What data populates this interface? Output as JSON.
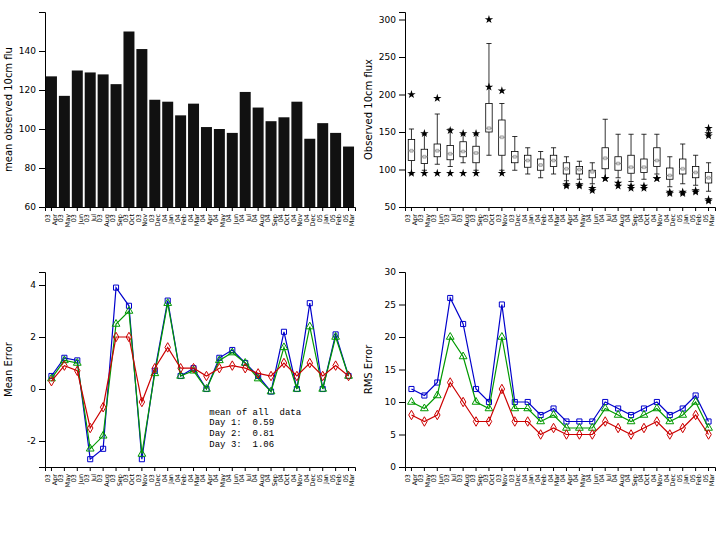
{
  "chart_data": [
    {
      "type": "bar",
      "categories": [
        "03\nApr",
        "03\nMay",
        "03\nJun",
        "03\nJul",
        "03\nAug",
        "03\nSep",
        "03\nOct",
        "03\nNov",
        "03\nDec",
        "04\nJan",
        "04\nFeb",
        "04\nMar",
        "04\nApr",
        "04\nMay",
        "04\nJun",
        "04\nJul",
        "04\nAug",
        "04\nSep",
        "04\nOct",
        "04\nNov",
        "04\nDec",
        "05\nJan",
        "05\nFeb",
        "05\nMar"
      ],
      "values": [
        127,
        117,
        130,
        129,
        128,
        123,
        150,
        141,
        115,
        114,
        107,
        113,
        101,
        100,
        98,
        119,
        111,
        104,
        106,
        114,
        95,
        103,
        98,
        91
      ],
      "color": "#111111",
      "ylabel": "mean observed 10cm flu",
      "ylim": [
        60,
        160
      ],
      "yticks": [
        60,
        80,
        100,
        120,
        140
      ]
    },
    {
      "type": "box",
      "categories": [
        "03\nApr",
        "03\nMay",
        "03\nJun",
        "03\nJul",
        "03\nAug",
        "03\nSep",
        "03\nOct",
        "03\nNov",
        "03\nDec",
        "04\nJan",
        "04\nFeb",
        "04\nMar",
        "04\nApr",
        "04\nMay",
        "04\nJun",
        "04\nJul",
        "04\nAug",
        "04\nSep",
        "04\nOct",
        "04\nNov",
        "04\nDec",
        "05\nJan",
        "05\nFeb",
        "05\nMar"
      ],
      "medians": [
        125,
        117,
        125,
        121,
        124,
        122,
        155,
        143,
        117,
        112,
        106,
        112,
        101,
        100,
        97,
        115,
        108,
        103,
        103,
        112,
        92,
        101,
        96,
        89
      ],
      "q1": [
        112,
        108,
        117,
        113,
        117,
        109,
        150,
        119,
        109,
        103,
        99,
        104,
        94,
        94,
        89,
        101,
        99,
        95,
        96,
        104,
        87,
        94,
        89,
        82
      ],
      "q3": [
        140,
        127,
        134,
        132,
        137,
        131,
        188,
        166,
        124,
        119,
        114,
        119,
        109,
        104,
        99,
        129,
        117,
        119,
        114,
        129,
        102,
        114,
        104,
        96
      ],
      "whislo": [
        94,
        99,
        107,
        104,
        109,
        99,
        119,
        99,
        99,
        94,
        89,
        94,
        85,
        87,
        81,
        89,
        89,
        84,
        87,
        94,
        77,
        81,
        79,
        71
      ],
      "whishi": [
        154,
        147,
        174,
        154,
        147,
        147,
        268,
        188,
        144,
        129,
        124,
        129,
        117,
        111,
        109,
        167,
        147,
        147,
        147,
        147,
        117,
        134,
        119,
        109
      ],
      "fliers_hi": [
        [
          200
        ],
        [
          148
        ],
        [
          195
        ],
        [
          152
        ],
        [
          148
        ],
        [
          148
        ],
        [
          300,
          210
        ],
        [
          205
        ],
        [],
        [],
        [],
        [],
        [],
        [],
        [],
        [],
        [],
        [],
        [],
        [],
        [],
        [],
        [],
        [
          155,
          148,
          145
        ]
      ],
      "fliers_lo": [
        [
          95
        ],
        [
          95
        ],
        [
          95
        ],
        [
          95
        ],
        [
          95
        ],
        [
          95
        ],
        [],
        [
          95
        ],
        [],
        [],
        [],
        [],
        [
          80,
          78
        ],
        [
          80,
          78
        ],
        [
          75,
          72
        ],
        [
          88,
          88
        ],
        [
          82,
          78
        ],
        [
          78,
          75
        ],
        [
          78,
          75
        ],
        [
          88,
          88
        ],
        [
          70,
          68
        ],
        [
          70,
          68
        ],
        [
          72,
          70
        ],
        [
          60,
          58
        ]
      ],
      "ylabel": "Observed 10cm flux",
      "ylim": [
        50,
        310
      ],
      "yticks": [
        50,
        100,
        150,
        200,
        250,
        300
      ]
    },
    {
      "type": "line",
      "categories": [
        "03\nApr",
        "03\nMay",
        "03\nJun",
        "03\nJul",
        "03\nAug",
        "03\nSep",
        "03\nOct",
        "03\nNov",
        "03\nDec",
        "04\nJan",
        "04\nFeb",
        "04\nMar",
        "04\nApr",
        "04\nMay",
        "04\nJun",
        "04\nJul",
        "04\nAug",
        "04\nSep",
        "04\nOct",
        "04\nNov",
        "04\nDec",
        "05\nJan",
        "05\nFeb",
        "05\nMar"
      ],
      "series": [
        {
          "color": "#0000cc",
          "marker": "square",
          "values": [
            0.5,
            1.2,
            1.1,
            -2.7,
            -2.3,
            3.9,
            3.2,
            -2.7,
            0.7,
            3.4,
            0.5,
            0.8,
            0.0,
            1.2,
            1.5,
            1.0,
            0.5,
            -0.1,
            2.2,
            0.0,
            3.3,
            0.0,
            2.1,
            0.5
          ]
        },
        {
          "color": "#009900",
          "marker": "triangle",
          "values": [
            0.4,
            1.1,
            1.0,
            -2.3,
            -1.8,
            2.5,
            3.0,
            -2.5,
            0.6,
            3.3,
            0.5,
            0.7,
            0.0,
            1.1,
            1.4,
            1.0,
            0.4,
            -0.1,
            1.6,
            0.0,
            2.4,
            0.0,
            2.0,
            0.5
          ]
        },
        {
          "color": "#cc0000",
          "marker": "diamond",
          "values": [
            0.3,
            0.9,
            0.7,
            -1.5,
            -0.7,
            2.0,
            2.0,
            -0.5,
            0.8,
            1.6,
            0.8,
            0.8,
            0.5,
            0.8,
            0.9,
            0.8,
            0.6,
            0.5,
            1.0,
            0.5,
            1.0,
            0.5,
            0.9,
            0.5
          ]
        }
      ],
      "ylabel": "Mean Error",
      "annotation": "mean of all  data\nDay 1:  0.59\nDay 2:  0.81\nDay 3:  1.06",
      "ylim": [
        -3,
        4.5
      ],
      "yticks": [
        -2,
        0,
        2,
        4
      ]
    },
    {
      "type": "line",
      "categories": [
        "03\nApr",
        "03\nMay",
        "03\nJun",
        "03\nJul",
        "03\nAug",
        "03\nSep",
        "03\nOct",
        "03\nNov",
        "03\nDec",
        "04\nJan",
        "04\nFeb",
        "04\nMar",
        "04\nApr",
        "04\nMay",
        "04\nJun",
        "04\nJul",
        "04\nAug",
        "04\nSep",
        "04\nOct",
        "04\nNov",
        "04\nDec",
        "05\nJan",
        "05\nFeb",
        "05\nMar"
      ],
      "series": [
        {
          "color": "#0000cc",
          "marker": "square",
          "values": [
            12,
            11,
            13,
            26,
            22,
            12,
            10,
            25,
            10,
            10,
            8,
            9,
            7,
            7,
            7,
            10,
            9,
            8,
            9,
            10,
            8,
            9,
            11,
            7
          ]
        },
        {
          "color": "#009900",
          "marker": "triangle",
          "values": [
            10,
            9,
            11,
            20,
            17,
            10,
            9,
            20,
            9,
            9,
            7,
            8,
            6,
            6,
            6,
            9,
            8,
            7,
            8,
            9,
            7,
            8,
            10,
            6
          ]
        },
        {
          "color": "#cc0000",
          "marker": "diamond",
          "values": [
            8,
            7,
            8,
            13,
            10,
            7,
            7,
            12,
            7,
            7,
            5,
            6,
            5,
            5,
            5,
            7,
            6,
            5,
            6,
            7,
            5,
            6,
            8,
            5
          ]
        }
      ],
      "ylabel": "RMS Error",
      "ylim": [
        0,
        30
      ],
      "yticks": [
        0,
        5,
        10,
        15,
        20,
        25,
        30
      ]
    }
  ]
}
